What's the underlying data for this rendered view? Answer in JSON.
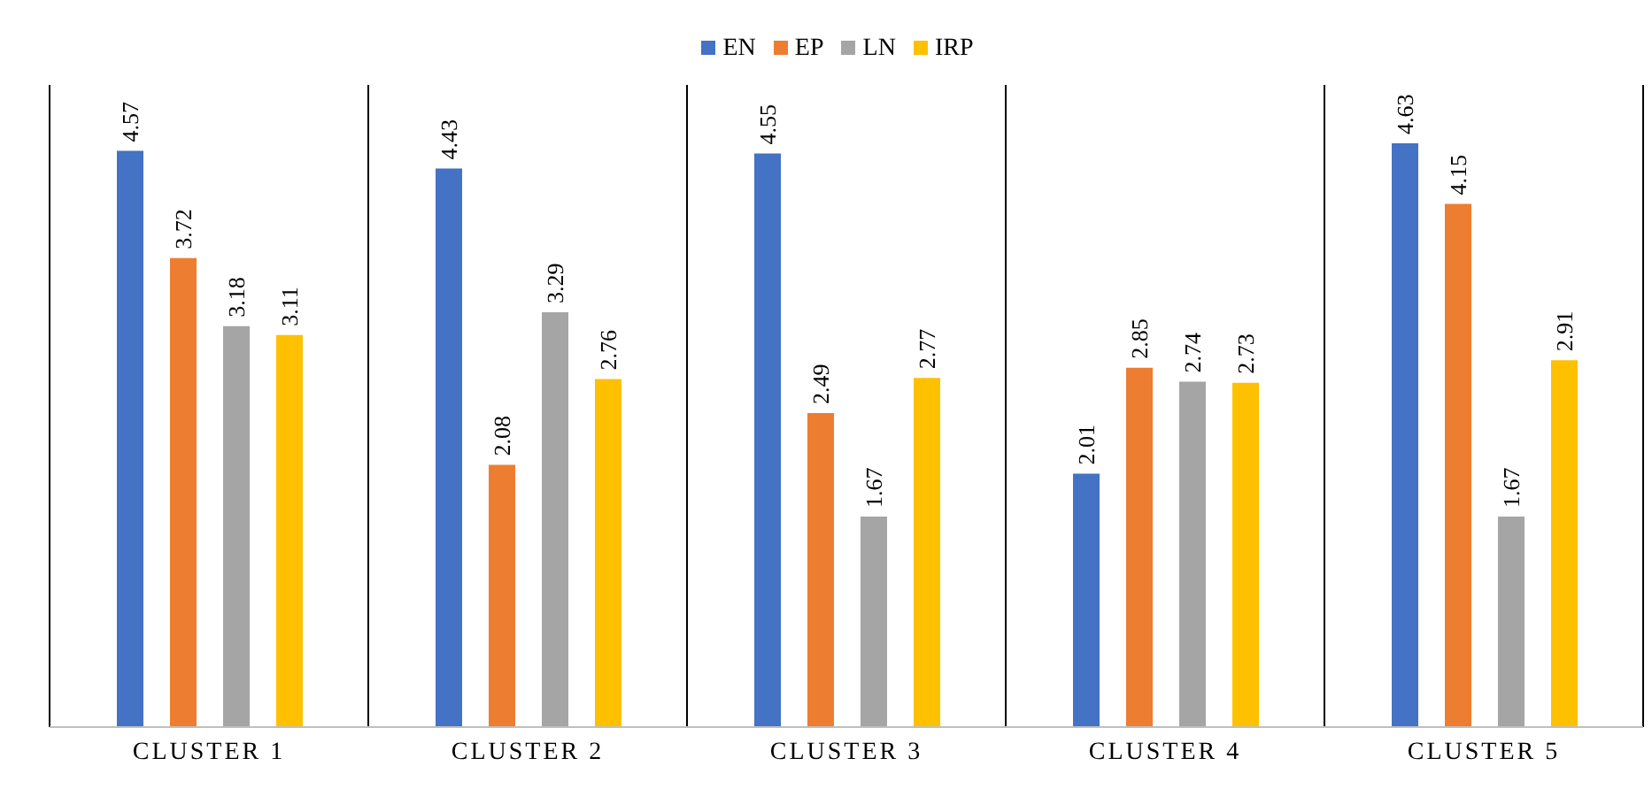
{
  "chart_data": {
    "type": "bar",
    "categories": [
      "CLUSTER 1",
      "CLUSTER 2",
      "CLUSTER 3",
      "CLUSTER 4",
      "CLUSTER 5"
    ],
    "series": [
      {
        "name": "EN",
        "color": "#4472c4",
        "values": [
          4.57,
          4.43,
          4.55,
          2.01,
          4.63
        ]
      },
      {
        "name": "EP",
        "color": "#ed7d31",
        "values": [
          3.72,
          2.08,
          2.49,
          2.85,
          4.15
        ]
      },
      {
        "name": "LN",
        "color": "#a5a5a5",
        "values": [
          3.18,
          3.29,
          1.67,
          2.74,
          1.67
        ]
      },
      {
        "name": "IRP",
        "color": "#ffc000",
        "values": [
          3.11,
          2.76,
          2.77,
          2.73,
          2.91
        ]
      }
    ],
    "data_labels": true,
    "grid": "x",
    "legend": "top"
  }
}
